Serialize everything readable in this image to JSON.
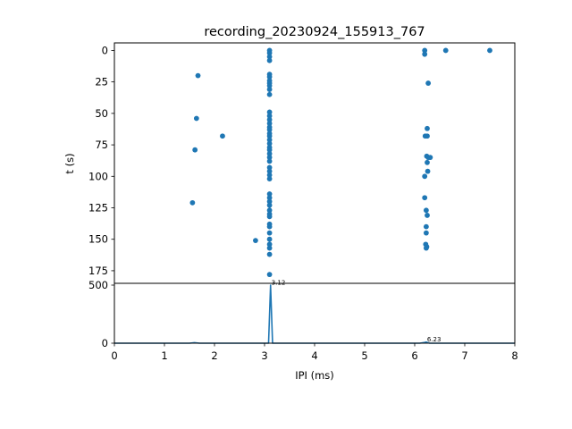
{
  "chart_data": [
    {
      "type": "scatter",
      "title": "recording_20230924_155913_767",
      "ylabel": "t (s)",
      "xlabel": "",
      "xlim": [
        0,
        8
      ],
      "ylim": [
        185,
        -6
      ],
      "y_inverted": true,
      "yticks": [
        0,
        25,
        50,
        75,
        100,
        125,
        150,
        175
      ],
      "grid": false,
      "color": "#1f77b4",
      "points": [
        [
          3.1,
          0
        ],
        [
          3.1,
          2
        ],
        [
          3.1,
          5
        ],
        [
          3.1,
          8
        ],
        [
          3.1,
          19
        ],
        [
          3.1,
          21
        ],
        [
          3.1,
          24
        ],
        [
          3.1,
          26
        ],
        [
          3.1,
          28
        ],
        [
          3.1,
          31
        ],
        [
          3.1,
          35
        ],
        [
          3.1,
          49
        ],
        [
          3.1,
          52
        ],
        [
          3.1,
          55
        ],
        [
          3.1,
          58
        ],
        [
          3.1,
          61
        ],
        [
          3.1,
          63
        ],
        [
          3.1,
          66
        ],
        [
          3.1,
          68
        ],
        [
          3.1,
          71
        ],
        [
          3.1,
          74
        ],
        [
          3.1,
          77
        ],
        [
          3.1,
          79
        ],
        [
          3.1,
          82
        ],
        [
          3.1,
          85
        ],
        [
          3.1,
          88
        ],
        [
          3.1,
          93
        ],
        [
          3.1,
          96
        ],
        [
          3.1,
          99
        ],
        [
          3.1,
          102
        ],
        [
          3.1,
          114
        ],
        [
          3.1,
          117
        ],
        [
          3.1,
          120
        ],
        [
          3.1,
          123
        ],
        [
          3.1,
          127
        ],
        [
          3.1,
          130
        ],
        [
          3.1,
          132
        ],
        [
          3.1,
          138
        ],
        [
          3.1,
          140
        ],
        [
          3.1,
          145
        ],
        [
          3.1,
          150
        ],
        [
          3.1,
          154
        ],
        [
          3.1,
          157
        ],
        [
          3.1,
          162
        ],
        [
          3.1,
          178
        ],
        [
          1.67,
          20
        ],
        [
          1.64,
          54
        ],
        [
          1.61,
          79
        ],
        [
          1.56,
          121
        ],
        [
          2.16,
          68
        ],
        [
          2.82,
          151
        ],
        [
          6.2,
          0
        ],
        [
          6.2,
          3
        ],
        [
          6.27,
          26
        ],
        [
          6.25,
          62
        ],
        [
          6.21,
          68
        ],
        [
          6.25,
          68
        ],
        [
          6.24,
          84
        ],
        [
          6.27,
          85
        ],
        [
          6.31,
          85
        ],
        [
          6.25,
          89
        ],
        [
          6.26,
          96
        ],
        [
          6.2,
          100
        ],
        [
          6.2,
          117
        ],
        [
          6.23,
          127
        ],
        [
          6.25,
          131
        ],
        [
          6.23,
          140
        ],
        [
          6.23,
          145
        ],
        [
          6.22,
          154
        ],
        [
          6.24,
          156
        ],
        [
          6.23,
          157
        ],
        [
          6.62,
          0
        ],
        [
          7.5,
          0
        ]
      ]
    },
    {
      "type": "line",
      "xlabel": "IPI (ms)",
      "ylabel": "",
      "xlim": [
        0,
        8
      ],
      "ylim": [
        0,
        500
      ],
      "xticks": [
        0,
        1,
        2,
        3,
        4,
        5,
        6,
        7,
        8
      ],
      "yticks": [
        0,
        500
      ],
      "grid": false,
      "color": "#1f77b4",
      "x": [
        0,
        1.5,
        1.6,
        1.7,
        3.0,
        3.08,
        3.12,
        3.16,
        3.24,
        6.1,
        6.2,
        6.23,
        6.3,
        8
      ],
      "y": [
        0,
        0,
        4,
        0,
        0,
        0,
        500,
        0,
        0,
        0,
        6,
        10,
        0,
        0
      ],
      "annotations": [
        {
          "x": 3.12,
          "y": 500,
          "text": "3.12"
        },
        {
          "x": 6.23,
          "y": 10,
          "text": "6.23"
        }
      ]
    }
  ]
}
